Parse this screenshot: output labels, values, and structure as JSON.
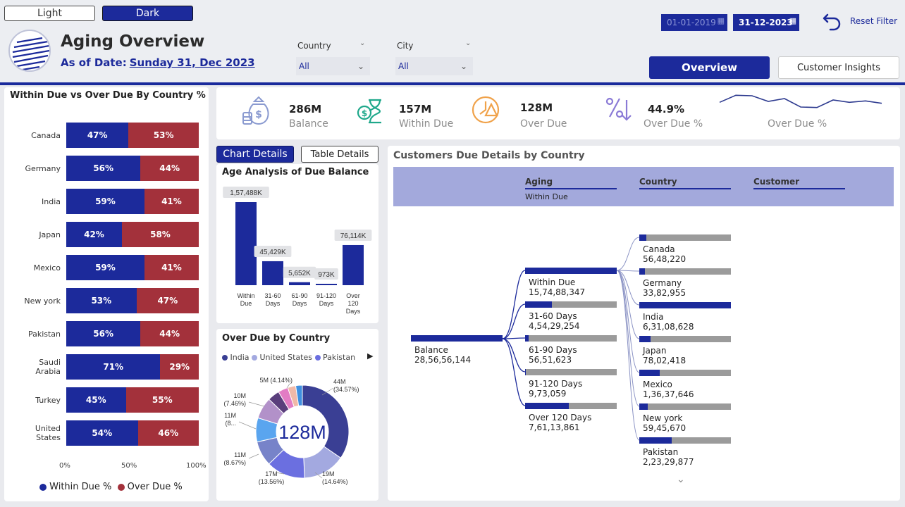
{
  "theme": {
    "light_label": "Light",
    "dark_label": "Dark"
  },
  "header": {
    "title": "Aging Overview",
    "as_of_prefix": "As of Date:",
    "as_of_date": "Sunday 31, Dec 2023"
  },
  "filters": {
    "country": {
      "label": "Country",
      "value": "All"
    },
    "city": {
      "label": "City",
      "value": "All"
    },
    "start_date": "01-01-2019",
    "end_date": "31-12-2023",
    "reset_label": "Reset Filter"
  },
  "nav": {
    "overview": "Overview",
    "customer_insights": "Customer Insights"
  },
  "kpis": [
    {
      "value": "286M",
      "label": "Balance",
      "icon": "money-bag-icon"
    },
    {
      "value": "157M",
      "label": "Within Due",
      "icon": "hourglass-money-icon"
    },
    {
      "value": "128M",
      "label": "Over Due",
      "icon": "clock-alert-icon"
    },
    {
      "value": "44.9%",
      "label": "Over Due %",
      "icon": "percent-arrow-icon"
    }
  ],
  "sparkline_label": "Over Due %",
  "country_chart": {
    "title": "Within Due vs Over Due By Country %",
    "legend": [
      "Within Due %",
      "Over Due %"
    ],
    "axis": [
      "0%",
      "50%",
      "100%"
    ],
    "colors": {
      "within": "#1c2a9b",
      "over": "#a3313b"
    }
  },
  "chart_tabs": {
    "chart_details": "Chart Details",
    "table_details": "Table Details"
  },
  "age_chart": {
    "title": "Age Analysis of Due Balance",
    "cats": [
      "Within Due",
      "31-60 Days",
      "61-90 Days",
      "91-120 Days",
      "Over 120 Days"
    ],
    "cat_lines": [
      [
        "Within",
        "Due"
      ],
      [
        "31-60",
        "Days"
      ],
      [
        "61-90",
        "Days"
      ],
      [
        "91-120",
        "Days"
      ],
      [
        "Over",
        "120",
        "Days"
      ]
    ],
    "labels": [
      "1,57,488K",
      "45,429K",
      "5,652K",
      "973K",
      "76,114K"
    ]
  },
  "overdue_chart": {
    "title": "Over Due by Country",
    "legend": [
      "India",
      "United States",
      "Pakistan"
    ],
    "center": "128M",
    "slice_labels": [
      "44M",
      "(34.57%)",
      "19M",
      "(14.64%)",
      "17M",
      "(13.56%)",
      "11M",
      "(8.67%)",
      "11M",
      "(8...",
      "10M",
      "(7.46%)",
      "5M (4.14%)"
    ]
  },
  "tree": {
    "title": "Customers Due Details by Country",
    "headers": {
      "aging": "Aging",
      "aging_sub": "Within Due",
      "country": "Country",
      "customer": "Customer"
    },
    "root_label": "Balance",
    "root_value": "28,56,56,144",
    "aging_values": [
      "15,74,88,347",
      "4,54,29,254",
      "56,51,623",
      "9,73,059",
      "7,61,13,861"
    ],
    "countries": [
      "Canada",
      "Germany",
      "India",
      "Japan",
      "Mexico",
      "New york",
      "Pakistan"
    ],
    "country_values": [
      "56,48,220",
      "33,82,955",
      "6,31,08,628",
      "78,02,418",
      "1,36,37,646",
      "59,45,670",
      "2,23,29,877"
    ]
  },
  "chart_data": [
    {
      "type": "bar",
      "title": "Within Due vs Over Due By Country %",
      "orientation": "horizontal-stacked-100",
      "categories": [
        "Canada",
        "Germany",
        "India",
        "Japan",
        "Mexico",
        "New york",
        "Pakistan",
        "Saudi Arabia",
        "Turkey",
        "United States"
      ],
      "series": [
        {
          "name": "Within Due %",
          "values": [
            47,
            56,
            59,
            42,
            59,
            53,
            56,
            71,
            45,
            54
          ]
        },
        {
          "name": "Over Due %",
          "values": [
            53,
            44,
            41,
            58,
            41,
            47,
            44,
            29,
            55,
            46
          ]
        }
      ],
      "xlim": [
        0,
        100
      ],
      "legend": "bottom"
    },
    {
      "type": "bar",
      "title": "Age Analysis of Due Balance",
      "categories": [
        "Within Due",
        "31-60 Days",
        "61-90 Days",
        "91-120 Days",
        "Over 120 Days"
      ],
      "values": [
        157488,
        45429,
        5652,
        973,
        76114
      ],
      "unit": "K"
    },
    {
      "type": "pie",
      "title": "Over Due by Country",
      "donut": true,
      "center_label": "128M",
      "values": [
        34.57,
        14.64,
        13.56,
        8.67,
        8.36,
        7.46,
        4.14,
        3.5,
        2.8,
        2.3
      ],
      "colors": [
        "#3a3f94",
        "#a3a9e0",
        "#6b6fe0",
        "#7783c9",
        "#5aa5ef",
        "#b291c9",
        "#5a3e7c",
        "#e27cc4",
        "#f0b9a8",
        "#3f8fe0"
      ],
      "legend": "top"
    },
    {
      "type": "line",
      "title": "",
      "series": [
        {
          "name": "Over Due %",
          "values": [
            40,
            55,
            54,
            42,
            48,
            30,
            29,
            45,
            40,
            43,
            38
          ]
        }
      ]
    }
  ]
}
